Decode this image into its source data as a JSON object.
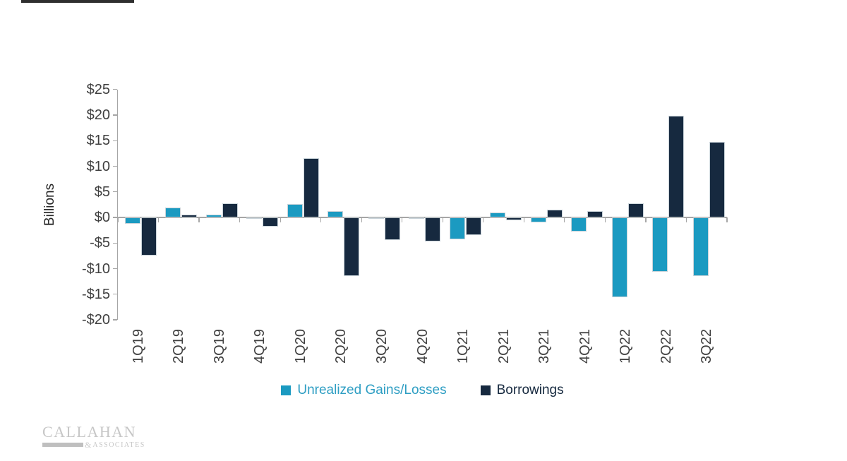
{
  "misc": {
    "top_bar_color": "#2f2f2f",
    "background": "#ffffff"
  },
  "chart_data": {
    "type": "bar",
    "title": "",
    "xlabel": "",
    "ylabel": "Billions",
    "ylim": [
      -20,
      25
    ],
    "y_tick_step": 5,
    "grid": false,
    "legend_position": "bottom",
    "axis_color": "#A6A6A6",
    "label_color": "#404040",
    "categories": [
      "1Q19",
      "2Q19",
      "3Q19",
      "4Q19",
      "1Q20",
      "2Q20",
      "3Q20",
      "4Q20",
      "1Q21",
      "2Q21",
      "3Q21",
      "4Q21",
      "1Q22",
      "2Q22",
      "3Q22"
    ],
    "y_ticks": [
      {
        "label": "$25",
        "value": 25
      },
      {
        "label": "$20",
        "value": 20
      },
      {
        "label": "$15",
        "value": 15
      },
      {
        "label": "$10",
        "value": 10
      },
      {
        "label": "$5",
        "value": 5
      },
      {
        "label": "$0",
        "value": 0
      },
      {
        "label": "-$5",
        "value": -5
      },
      {
        "label": "-$10",
        "value": -10
      },
      {
        "label": "-$15",
        "value": -15
      },
      {
        "label": "-$20",
        "value": -20
      }
    ],
    "series": [
      {
        "name": "Unrealized Gains/Losses",
        "color": "#1B9AC1",
        "label_color": "#2E9EC3",
        "values": [
          -1.3,
          1.9,
          0.6,
          -0.3,
          2.6,
          1.3,
          -0.3,
          -0.3,
          -4.3,
          1.0,
          -0.9,
          -2.7,
          -15.6,
          -10.6,
          -11.5
        ]
      },
      {
        "name": "Borrowings",
        "color": "#16293F",
        "label_color": "#16293F",
        "values": [
          -7.4,
          0.5,
          2.8,
          -1.8,
          11.6,
          -11.4,
          -4.4,
          -4.7,
          -3.4,
          -0.5,
          1.5,
          1.3,
          2.7,
          19.9,
          14.8
        ]
      }
    ]
  },
  "logo": {
    "name": "CALLAHAN",
    "ampersand": "&",
    "subtitle": "ASSOCIATES"
  }
}
